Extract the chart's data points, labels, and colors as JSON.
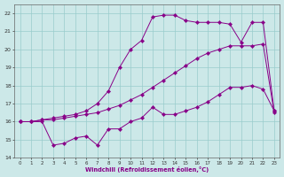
{
  "xlabel": "Windchill (Refroidissement éolien,°C)",
  "xlim_min": -0.5,
  "xlim_max": 23.5,
  "ylim_min": 14,
  "ylim_max": 22.5,
  "yticks": [
    14,
    15,
    16,
    17,
    18,
    19,
    20,
    21,
    22
  ],
  "xticks": [
    0,
    1,
    2,
    3,
    4,
    5,
    6,
    7,
    8,
    9,
    10,
    11,
    12,
    13,
    14,
    15,
    16,
    17,
    18,
    19,
    20,
    21,
    22,
    23
  ],
  "bg_color": "#cce8e8",
  "line_color": "#880088",
  "grid_color": "#99cccc",
  "series1_x": [
    0,
    1,
    2,
    3,
    4,
    5,
    6,
    7,
    8,
    9,
    10,
    11,
    12,
    13,
    14,
    15,
    16,
    17,
    18,
    19,
    20,
    21,
    22,
    23
  ],
  "series1_y": [
    16.0,
    16.0,
    16.0,
    14.7,
    14.8,
    15.1,
    15.2,
    14.7,
    15.6,
    15.6,
    16.0,
    16.2,
    16.8,
    16.4,
    16.4,
    16.6,
    16.8,
    17.1,
    17.5,
    17.9,
    17.9,
    18.0,
    17.8,
    16.6
  ],
  "series2_x": [
    0,
    1,
    2,
    3,
    4,
    5,
    6,
    7,
    8,
    9,
    10,
    11,
    12,
    13,
    14,
    15,
    16,
    17,
    18,
    19,
    20,
    21,
    22,
    23
  ],
  "series2_y": [
    16.0,
    16.0,
    16.1,
    16.1,
    16.2,
    16.3,
    16.4,
    16.5,
    16.7,
    16.9,
    17.2,
    17.5,
    17.9,
    18.3,
    18.7,
    19.1,
    19.5,
    19.8,
    20.0,
    20.2,
    20.2,
    20.2,
    20.3,
    16.5
  ],
  "series3_x": [
    0,
    1,
    2,
    3,
    4,
    5,
    6,
    7,
    8,
    9,
    10,
    11,
    12,
    13,
    14,
    15,
    16,
    17,
    18,
    19,
    20,
    21,
    22,
    23
  ],
  "series3_y": [
    16.0,
    16.0,
    16.1,
    16.2,
    16.3,
    16.4,
    16.6,
    17.0,
    17.7,
    19.0,
    20.0,
    20.5,
    21.8,
    21.9,
    21.9,
    21.6,
    21.5,
    21.5,
    21.5,
    21.4,
    20.4,
    21.5,
    21.5,
    16.6
  ]
}
